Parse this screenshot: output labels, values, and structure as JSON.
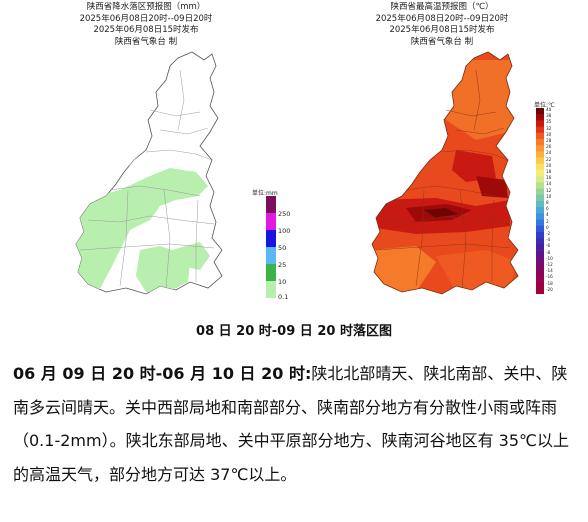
{
  "rain_map": {
    "title": "陕西省降水落区预报图（mm）",
    "period": "2025年06月08日20时--09日20时",
    "issued": "2025年06月08日15时发布",
    "publisher": "陕西省气象台  制",
    "legend_unit": "单位:mm",
    "legend": [
      {
        "label": "250",
        "color": "#7a0f5c"
      },
      {
        "label": "100",
        "color": "#e21adf"
      },
      {
        "label": "50",
        "color": "#1a14e0"
      },
      {
        "label": "25",
        "color": "#5ab8f2"
      },
      {
        "label": "10",
        "color": "#3bb349"
      },
      {
        "label": "0.1",
        "color": "#b8eeae"
      }
    ]
  },
  "temp_map": {
    "title": "陕西省最高温预报图（℃）",
    "period": "2025年06月08日20时--09日20时",
    "issued": "2025年06月08日15时发布",
    "publisher": "陕西省气象台  制",
    "legend_unit": "单位:℃",
    "legend": [
      "40",
      "38",
      "35",
      "32",
      "30",
      "28",
      "26",
      "24",
      "22",
      "20",
      "18",
      "16",
      "14",
      "12",
      "10",
      "8",
      "6",
      "4",
      "2",
      "0",
      "-2",
      "-4",
      "-6",
      "-8",
      "-10",
      "-12",
      "-14",
      "-16",
      "-18",
      "-20"
    ],
    "legend_colors": [
      "#6d0505",
      "#9e0a0a",
      "#c81a12",
      "#e2341b",
      "#ef5a22",
      "#f57a2a",
      "#f99533",
      "#fbb13f",
      "#fcc94f",
      "#fde064",
      "#f5ec7a",
      "#d8eb88",
      "#b6e08e",
      "#96d39a",
      "#79c7ad",
      "#5fbac2",
      "#4aa9d3",
      "#3d93dd",
      "#3477e0",
      "#2d59d8",
      "#2f3fc8",
      "#3a2db5",
      "#4a20a0",
      "#5c168c",
      "#6e0f7a",
      "#7d0a6a",
      "#8a065c",
      "#940450",
      "#9b0246",
      "#a0003c"
    ]
  },
  "caption": "08 日 20 时-09 日 20 时落区图",
  "forecast": {
    "period": "06 月 09 日 20 时-06 月 10 日 20 时:",
    "text": "陕北北部晴天、陕北南部、关中、陕南多云间晴天。关中西部局地和南部部分、陕南部分地方有分散性小雨或阵雨（0.1-2mm）。陕北东部局地、关中平原部分地方、陕南河谷地区有 35℃以上的高温天气，部分地方可达 37℃以上。"
  }
}
